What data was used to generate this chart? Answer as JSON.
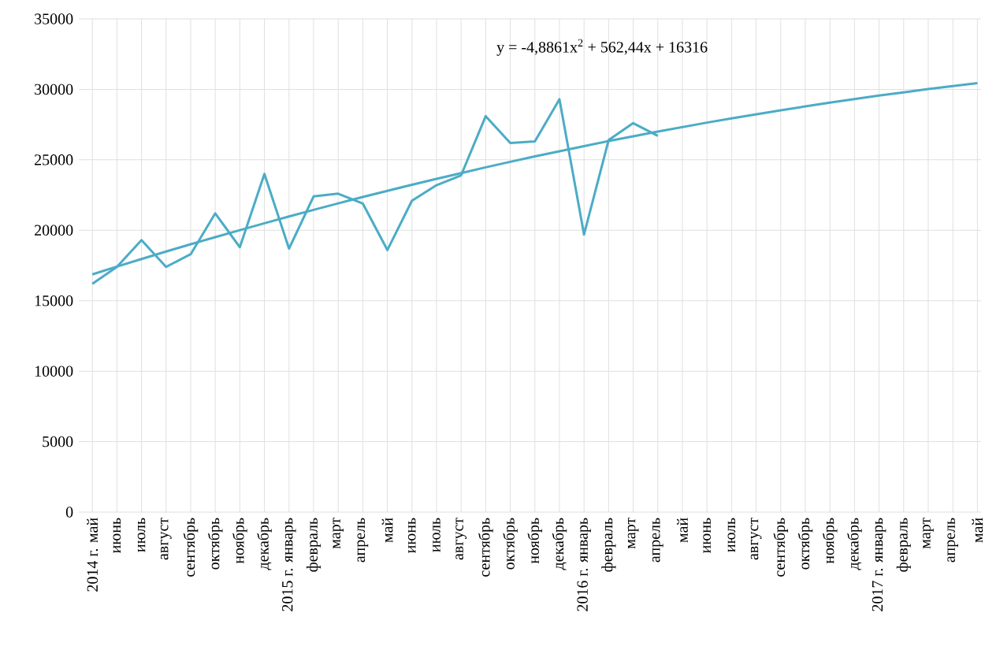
{
  "chart_data": {
    "type": "line",
    "categories": [
      "2014 г. май",
      "июнь",
      "июль",
      "август",
      "сентябрь",
      "октябрь",
      "ноябрь",
      "декабрь",
      "2015 г. январь",
      "февраль",
      "март",
      "апрель",
      "май",
      "июнь",
      "июль",
      "август",
      "сентябрь",
      "октябрь",
      "ноябрь",
      "декабрь",
      "2016 г. январь",
      "февраль",
      "март",
      "апрель",
      "май",
      "июнь",
      "июль",
      "август",
      "сентябрь",
      "октябрь",
      "ноябрь",
      "декабрь",
      "2017 г. январь",
      "февраль",
      "март",
      "апрель",
      "май"
    ],
    "series": [
      {
        "color": "#4bacc6",
        "values": [
          16200,
          17400,
          19300,
          17400,
          18300,
          21200,
          18800,
          24000,
          18700,
          22400,
          22600,
          21900,
          18600,
          22100,
          23200,
          23900,
          28100,
          26200,
          26300,
          29300,
          19700,
          26400,
          27600,
          26700,
          null,
          null,
          null,
          null,
          null,
          null,
          null,
          null,
          null,
          null,
          null,
          null,
          null
        ]
      },
      {
        "color": "#4bacc6",
        "values": [
          16870,
          17420,
          17960,
          18490,
          19010,
          19510,
          20010,
          20500,
          20980,
          21450,
          21910,
          22360,
          22800,
          23230,
          23650,
          24060,
          24470,
          24860,
          25240,
          25610,
          25970,
          26330,
          26670,
          27000,
          27320,
          27640,
          27940,
          28230,
          28520,
          28790,
          29060,
          29310,
          29560,
          29790,
          30020,
          30230,
          30440
        ]
      }
    ],
    "ylim": [
      0,
      35000
    ],
    "yticks": [
      0,
      5000,
      10000,
      15000,
      20000,
      25000,
      30000,
      35000
    ],
    "grid": true,
    "marker": "none",
    "line_style": "solid",
    "annotations": [
      "y = -4,8861x$^{2}$ + 562,44x + 16316"
    ]
  }
}
